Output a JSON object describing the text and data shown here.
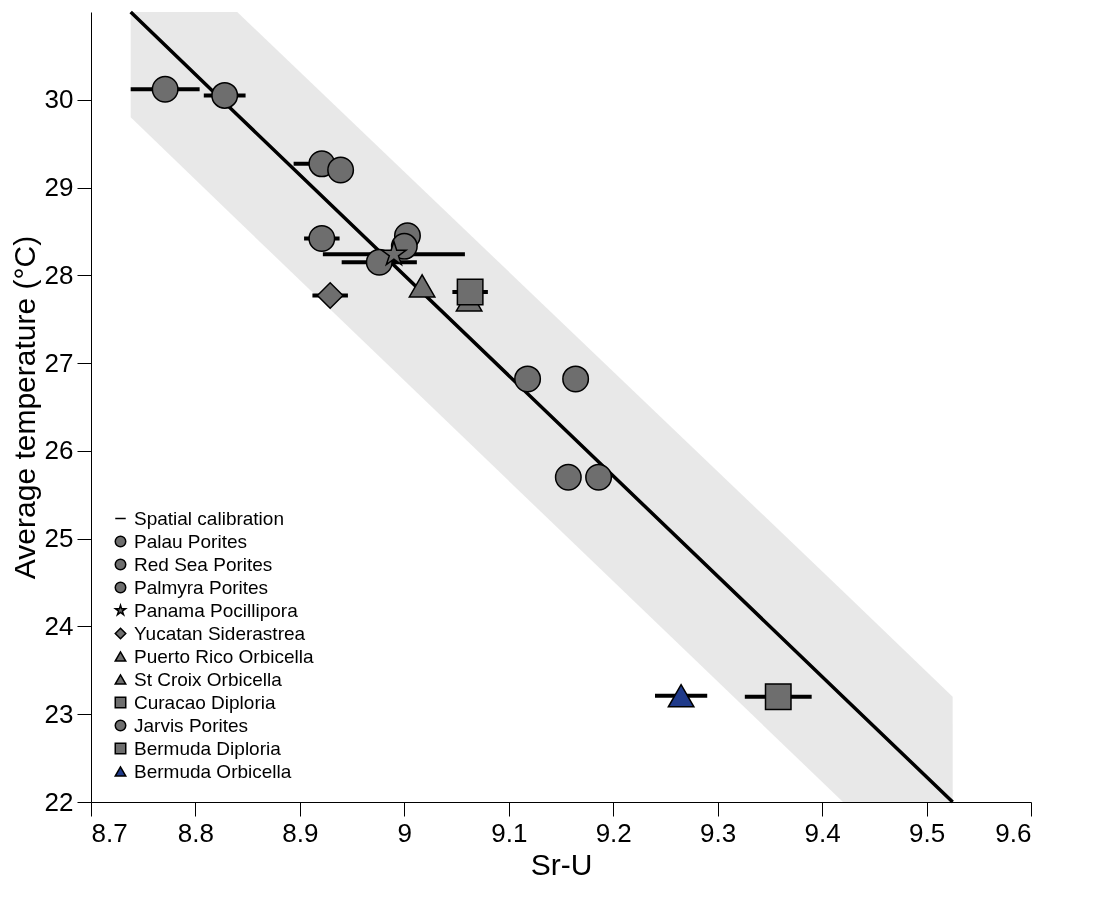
{
  "chart_data": {
    "type": "scatter",
    "xlabel": "Sr-U",
    "ylabel": "Average temperature (°C)",
    "xlim": [
      8.7,
      9.6
    ],
    "xticks": [
      8.7,
      8.8,
      8.9,
      9,
      9.1,
      9.2,
      9.3,
      9.4,
      9.5,
      9.6
    ],
    "ylim": [
      22,
      31
    ],
    "yticks": [
      22,
      23,
      24,
      25,
      26,
      27,
      28,
      29,
      30
    ],
    "grid": false,
    "legend": "bottom left",
    "series": [
      {
        "name": "Spatial calibration",
        "type": "line",
        "color": "#000000",
        "marker": "none",
        "line_style": "solid",
        "x": [
          8.738,
          8.84,
          9.42,
          9.525
        ],
        "values": [
          31,
          29.83,
          23.2,
          22
        ],
        "lower": [
          29.8,
          28.63,
          22,
          22
        ],
        "upper": [
          31,
          31,
          24.4,
          23.2
        ]
      },
      {
        "name": "Palau Porites",
        "color": "#6e6e6e",
        "marker": "circle",
        "x": [
          8.921,
          8.939
        ],
        "values": [
          29.27,
          29.2
        ],
        "xerrors": [
          0.027,
          null
        ]
      },
      {
        "name": "Red Sea Porites",
        "color": "#6e6e6e",
        "marker": "circle",
        "x": [
          9.118,
          9.164,
          9.157,
          9.186
        ],
        "values": [
          26.82,
          26.82,
          25.7,
          25.7
        ],
        "xerrors": [
          null,
          null,
          null,
          null
        ]
      },
      {
        "name": "Palmyra Porites",
        "color": "#6e6e6e",
        "marker": "circle",
        "x": [
          8.921,
          9.003,
          9.0,
          8.976
        ],
        "values": [
          28.42,
          28.45,
          28.33,
          28.15
        ],
        "xerrors": [
          0.017,
          null,
          null,
          0.036
        ]
      },
      {
        "name": "Panama Pocillipora",
        "color": "#6e6e6e",
        "marker": "star",
        "x": [
          8.99
        ],
        "values": [
          28.24
        ],
        "xerrors": [
          0.068
        ]
      },
      {
        "name": "Yucatan Siderastrea",
        "color": "#6e6e6e",
        "marker": "diamond",
        "x": [
          8.929
        ],
        "values": [
          27.77
        ],
        "xerrors": [
          0.017
        ]
      },
      {
        "name": "Puerto Rico Orbicella",
        "color": "#6e6e6e",
        "marker": "triangle",
        "x": [
          9.017
        ],
        "values": [
          27.88
        ],
        "xerrors": [
          null
        ]
      },
      {
        "name": "St Croix Orbicella",
        "color": "#6e6e6e",
        "marker": "triangle",
        "x": [
          9.062
        ],
        "values": [
          27.72
        ],
        "xerrors": [
          null
        ]
      },
      {
        "name": "Curacao Diploria",
        "color": "#6e6e6e",
        "marker": "square",
        "x": [
          9.063
        ],
        "values": [
          27.81
        ],
        "xerrors": [
          0.017
        ]
      },
      {
        "name": "Jarvis Porites",
        "color": "#6e6e6e",
        "marker": "circle",
        "x": [
          8.771,
          8.828
        ],
        "values": [
          30.12,
          30.05
        ],
        "xerrors": [
          0.033,
          0.02
        ]
      },
      {
        "name": "Bermuda Diploria",
        "color": "#6e6e6e",
        "marker": "square",
        "x": [
          9.358
        ],
        "values": [
          23.2
        ],
        "xerrors": [
          0.032
        ]
      },
      {
        "name": "Bermuda Orbicella",
        "color": "#1f3a8a",
        "marker": "triangle",
        "x": [
          9.265
        ],
        "values": [
          23.21
        ],
        "xerrors": [
          0.025
        ]
      }
    ]
  }
}
